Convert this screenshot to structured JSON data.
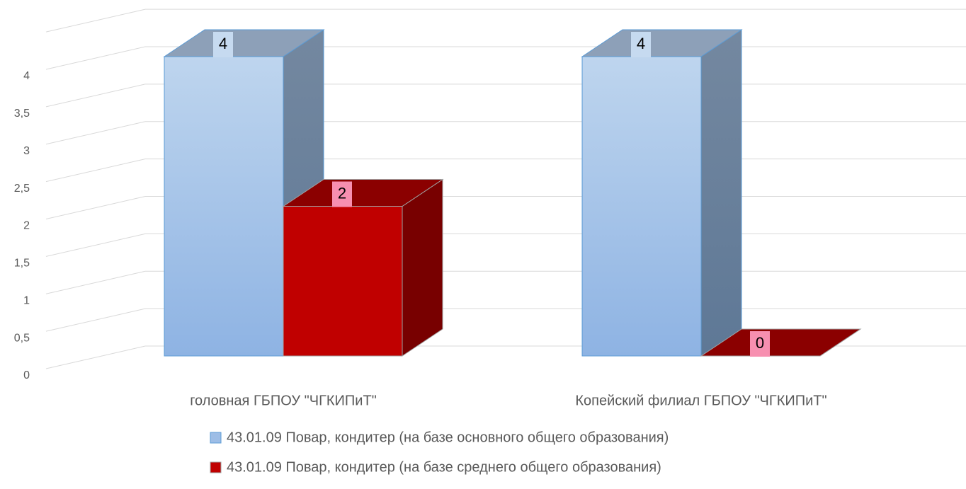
{
  "chart_data": {
    "type": "bar3d",
    "categories": [
      "головная ГБПОУ \"ЧГКИПиТ\"",
      "Копейский филиал ГБПОУ \"ЧГКИПиТ\""
    ],
    "series": [
      {
        "name": "43.01.09 Повар, кондитер (на базе основного общего образования)",
        "color": "#9dbde6",
        "values": [
          4,
          4
        ]
      },
      {
        "name": "43.01.09 Повар, кондитер (на базе среднего общего образования)",
        "color": "#c00000",
        "values": [
          2,
          0
        ]
      }
    ],
    "ylim": [
      0,
      4.5
    ],
    "yticks": [
      0,
      {
        "value": 0.5,
        "label": "0,5"
      },
      1,
      {
        "value": 1.5,
        "label": "1,5"
      },
      2,
      {
        "value": 2.5,
        "label": "2,5"
      },
      3,
      {
        "value": 3.5,
        "label": "3,5"
      },
      4
    ],
    "grid": true,
    "legend": "bottom"
  }
}
